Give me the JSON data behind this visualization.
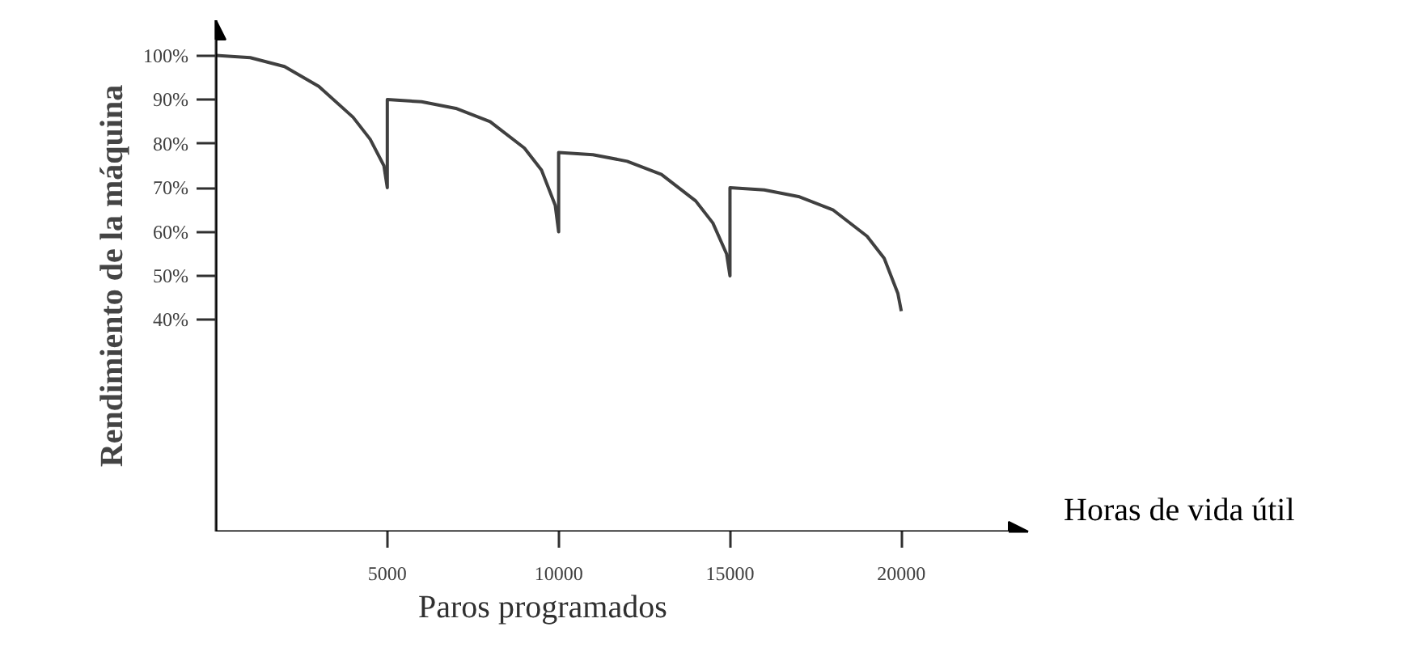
{
  "chart_data": {
    "type": "line",
    "x": [
      0,
      1000,
      2000,
      3000,
      4000,
      4500,
      4900,
      5000,
      5000,
      6000,
      7000,
      8000,
      9000,
      9500,
      9900,
      10000,
      10000,
      11000,
      12000,
      13000,
      14000,
      14500,
      14900,
      15000,
      15000,
      16000,
      17000,
      18000,
      19000,
      19500,
      19900,
      20000
    ],
    "series": [
      {
        "color": "#404040",
        "values": [
          100,
          99.5,
          97.5,
          93,
          86,
          81,
          75,
          70,
          90,
          89.5,
          88,
          85,
          79,
          74,
          66,
          60,
          78,
          77.5,
          76,
          73,
          67,
          62,
          55,
          50,
          70,
          69.5,
          68,
          65,
          59,
          54,
          46,
          42
        ]
      }
    ],
    "ylabel": "Rendimiento de la máquina",
    "xlabel": "Paros programados",
    "annotations": [
      "Horas de vida útil"
    ],
    "xlim": [
      0,
      23700
    ],
    "ylim": [
      -8,
      108
    ],
    "xticks": [
      5000,
      10000,
      15000,
      20000
    ],
    "yticks": [
      {
        "value": 40,
        "label": "40%"
      },
      {
        "value": 50,
        "label": "50%"
      },
      {
        "value": 60,
        "label": "60%"
      },
      {
        "value": 70,
        "label": "70%"
      },
      {
        "value": 80,
        "label": "80%"
      },
      {
        "value": 90,
        "label": "90%"
      },
      {
        "value": 100,
        "label": "100%"
      }
    ],
    "grid": false,
    "marker": "none",
    "line_style": "solid"
  }
}
